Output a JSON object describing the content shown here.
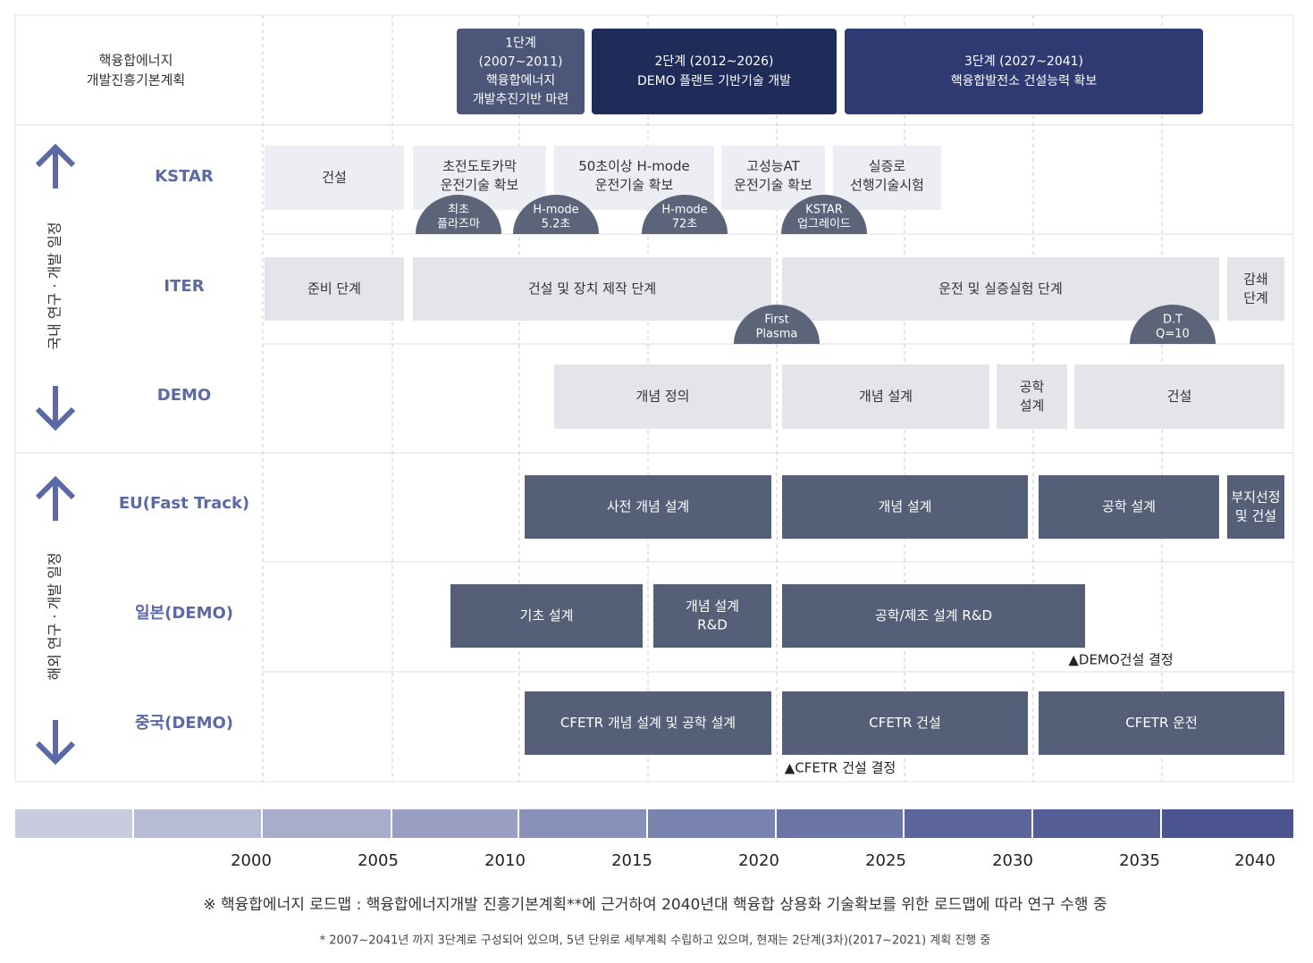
{
  "header": {
    "label": [
      "핵융합에너지",
      "개발진흥기본계획"
    ],
    "phases": [
      {
        "lines": [
          "1단계",
          "(2007~2011)",
          "핵융합에너지",
          "개발추진기반 마련"
        ]
      },
      {
        "lines": [
          "2단계 (2012~2026)",
          "DEMO 플랜트 기반기술 개발"
        ]
      },
      {
        "lines": [
          "3단계 (2027~2041)",
          "핵융합발전소 건설능력 확보"
        ]
      }
    ]
  },
  "groups": [
    {
      "label": "국내 연구 · 개발 일정"
    },
    {
      "label": "해외 연구 · 개발 일정"
    }
  ],
  "rows": [
    {
      "label": "KSTAR",
      "bars": [
        {
          "lines": [
            "건설"
          ]
        },
        {
          "lines": [
            "초전도토카막",
            "운전기술 확보"
          ]
        },
        {
          "lines": [
            "50초이상 H-mode",
            "운전기술 확보"
          ]
        },
        {
          "lines": [
            "고성능AT",
            "운전기술 확보"
          ]
        },
        {
          "lines": [
            "실증로",
            "선행기술시험"
          ]
        }
      ],
      "milestones": [
        {
          "lines": [
            "최초",
            "플라즈마"
          ]
        },
        {
          "lines": [
            "H-mode",
            "5.2초"
          ]
        },
        {
          "lines": [
            "H-mode",
            "72초"
          ]
        },
        {
          "lines": [
            "KSTAR",
            "업그레이드"
          ]
        }
      ]
    },
    {
      "label": "ITER",
      "bars": [
        {
          "lines": [
            "준비 단계"
          ]
        },
        {
          "lines": [
            "건설 및 장치 제작 단계"
          ]
        },
        {
          "lines": [
            "운전 및 실증실험 단계"
          ]
        },
        {
          "lines": [
            "감쇄",
            "단계"
          ]
        }
      ],
      "milestones": [
        {
          "lines": [
            "First",
            "Plasma"
          ]
        },
        {
          "lines": [
            "D.T",
            "Q=10"
          ]
        }
      ]
    },
    {
      "label": "DEMO",
      "bars": [
        {
          "lines": [
            "개념 정의"
          ]
        },
        {
          "lines": [
            "개념 설계"
          ]
        },
        {
          "lines": [
            "공학",
            "설계"
          ]
        },
        {
          "lines": [
            "건설"
          ]
        }
      ]
    },
    {
      "label": "EU(Fast Track)",
      "bars": [
        {
          "lines": [
            "사전 개념 설계"
          ]
        },
        {
          "lines": [
            "개념 설계"
          ]
        },
        {
          "lines": [
            "공학 설계"
          ]
        },
        {
          "lines": [
            "부지선정",
            "및 건설"
          ]
        }
      ]
    },
    {
      "label": "일본(DEMO)",
      "bars": [
        {
          "lines": [
            "기초 설계"
          ]
        },
        {
          "lines": [
            "개념 설계",
            "R&D"
          ]
        },
        {
          "lines": [
            "공학/제조 설계 R&D"
          ]
        }
      ],
      "annotation": "▲DEMO건설 결정"
    },
    {
      "label": "중국(DEMO)",
      "bars": [
        {
          "lines": [
            "CFETR 개념 설계 및 공학 설계"
          ]
        },
        {
          "lines": [
            "CFETR 건설"
          ]
        },
        {
          "lines": [
            "CFETR 운전"
          ]
        }
      ],
      "annotation": "▲CFETR 건설 결정"
    }
  ],
  "timeline": {
    "years": [
      "2000",
      "2005",
      "2010",
      "2015",
      "2020",
      "2025",
      "2030",
      "2035",
      "2040"
    ]
  },
  "footer": {
    "note": "※ 핵융합에너지 로드맵 : 핵융합에너지개발 진흥기본계획**에 근거하여 2040년대 핵융합 상용화 기술확보를 위한 로드맵에 따라 연구 수행 중",
    "sub": "* 2007~2041년 까지 3단계로 구성되어 있으며, 5년 단위로 세부계획 수립하고 있으며, 현재는 2단계(3차)(2017~2021) 계획 진행 중"
  }
}
